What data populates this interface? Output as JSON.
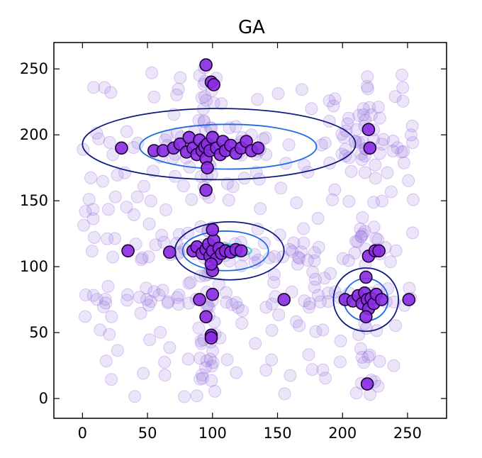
{
  "chart_data": {
    "type": "scatter",
    "title": "GA",
    "xlabel": "",
    "ylabel": "",
    "xlim": [
      -22,
      280
    ],
    "ylim": [
      -15,
      270
    ],
    "xticks": [
      0,
      50,
      100,
      150,
      200,
      250
    ],
    "yticks": [
      0,
      50,
      100,
      150,
      200,
      250
    ],
    "grid": false,
    "legend": "none",
    "colors": {
      "point_fill": "#8a2be2",
      "point_edge": "#1a0033",
      "background_point_fill": "#9370db",
      "contour_outer": "#0d1a80",
      "contour_mid": "#1e6ae6",
      "contour_inner": "#2ecfc8"
    },
    "background_points": {
      "count": 420,
      "x_range": [
        0,
        255
      ],
      "y_range": [
        0,
        255
      ],
      "note_hidden": ""
    },
    "clusters": [
      {
        "center": [
          100,
          190
        ],
        "spread": [
          42,
          9
        ],
        "contours": [
          {
            "center": [
              105,
              193
            ],
            "rx": 105,
            "ry": 27,
            "level": "outer"
          },
          {
            "center": [
              112,
              191
            ],
            "rx": 68,
            "ry": 17,
            "level": "mid"
          },
          {
            "center": [
              95,
              191
            ],
            "rx": 28,
            "ry": 5,
            "level": "inner"
          }
        ]
      },
      {
        "center": [
          100,
          112
        ],
        "spread": [
          20,
          9
        ],
        "contours": [
          {
            "center": [
              113,
              112
            ],
            "rx": 42,
            "ry": 22,
            "level": "outer"
          },
          {
            "center": [
              110,
              112
            ],
            "rx": 33,
            "ry": 15,
            "level": "mid"
          },
          {
            "center": [
              110,
              112
            ],
            "rx": 20,
            "ry": 5,
            "level": "inner"
          }
        ]
      },
      {
        "center": [
          218,
          75
        ],
        "spread": [
          14,
          10
        ],
        "contours": [
          {
            "center": [
              218,
              75
            ],
            "rx": 25,
            "ry": 24,
            "level": "outer"
          },
          {
            "center": [
              218,
              75
            ],
            "rx": 17,
            "ry": 16,
            "level": "mid"
          },
          {
            "center": [
              218,
              75
            ],
            "rx": 8,
            "ry": 8,
            "level": "inner"
          }
        ]
      }
    ],
    "highlighted_points": [
      {
        "x": 95,
        "y": 253
      },
      {
        "x": 99,
        "y": 240
      },
      {
        "x": 101,
        "y": 238
      },
      {
        "x": 30,
        "y": 190
      },
      {
        "x": 55,
        "y": 188
      },
      {
        "x": 62,
        "y": 188
      },
      {
        "x": 70,
        "y": 190
      },
      {
        "x": 75,
        "y": 193
      },
      {
        "x": 80,
        "y": 187
      },
      {
        "x": 82,
        "y": 198
      },
      {
        "x": 85,
        "y": 190
      },
      {
        "x": 88,
        "y": 185
      },
      {
        "x": 90,
        "y": 196
      },
      {
        "x": 92,
        "y": 188
      },
      {
        "x": 94,
        "y": 191
      },
      {
        "x": 95,
        "y": 182
      },
      {
        "x": 96,
        "y": 175
      },
      {
        "x": 96,
        "y": 193
      },
      {
        "x": 98,
        "y": 188
      },
      {
        "x": 100,
        "y": 198
      },
      {
        "x": 103,
        "y": 190
      },
      {
        "x": 106,
        "y": 185
      },
      {
        "x": 108,
        "y": 195
      },
      {
        "x": 110,
        "y": 188
      },
      {
        "x": 114,
        "y": 192
      },
      {
        "x": 118,
        "y": 186
      },
      {
        "x": 122,
        "y": 190
      },
      {
        "x": 126,
        "y": 195
      },
      {
        "x": 130,
        "y": 188
      },
      {
        "x": 135,
        "y": 190
      },
      {
        "x": 95,
        "y": 158
      },
      {
        "x": 220,
        "y": 204
      },
      {
        "x": 221,
        "y": 190
      },
      {
        "x": 35,
        "y": 112
      },
      {
        "x": 67,
        "y": 111
      },
      {
        "x": 85,
        "y": 112
      },
      {
        "x": 88,
        "y": 115
      },
      {
        "x": 92,
        "y": 110
      },
      {
        "x": 95,
        "y": 113
      },
      {
        "x": 97,
        "y": 117
      },
      {
        "x": 98,
        "y": 108
      },
      {
        "x": 100,
        "y": 112
      },
      {
        "x": 101,
        "y": 120
      },
      {
        "x": 103,
        "y": 106
      },
      {
        "x": 105,
        "y": 114
      },
      {
        "x": 107,
        "y": 110
      },
      {
        "x": 110,
        "y": 112
      },
      {
        "x": 114,
        "y": 111
      },
      {
        "x": 118,
        "y": 113
      },
      {
        "x": 122,
        "y": 112
      },
      {
        "x": 100,
        "y": 128
      },
      {
        "x": 100,
        "y": 97
      },
      {
        "x": 99,
        "y": 102
      },
      {
        "x": 220,
        "y": 108
      },
      {
        "x": 225,
        "y": 112
      },
      {
        "x": 228,
        "y": 112
      },
      {
        "x": 218,
        "y": 92
      },
      {
        "x": 90,
        "y": 75
      },
      {
        "x": 100,
        "y": 79
      },
      {
        "x": 95,
        "y": 62
      },
      {
        "x": 99,
        "y": 48
      },
      {
        "x": 99,
        "y": 46
      },
      {
        "x": 155,
        "y": 75
      },
      {
        "x": 202,
        "y": 75
      },
      {
        "x": 208,
        "y": 74
      },
      {
        "x": 212,
        "y": 78
      },
      {
        "x": 215,
        "y": 72
      },
      {
        "x": 217,
        "y": 80
      },
      {
        "x": 219,
        "y": 75
      },
      {
        "x": 220,
        "y": 68
      },
      {
        "x": 222,
        "y": 76
      },
      {
        "x": 224,
        "y": 72
      },
      {
        "x": 226,
        "y": 79
      },
      {
        "x": 230,
        "y": 75
      },
      {
        "x": 218,
        "y": 62
      },
      {
        "x": 251,
        "y": 75
      },
      {
        "x": 219,
        "y": 11
      }
    ]
  }
}
